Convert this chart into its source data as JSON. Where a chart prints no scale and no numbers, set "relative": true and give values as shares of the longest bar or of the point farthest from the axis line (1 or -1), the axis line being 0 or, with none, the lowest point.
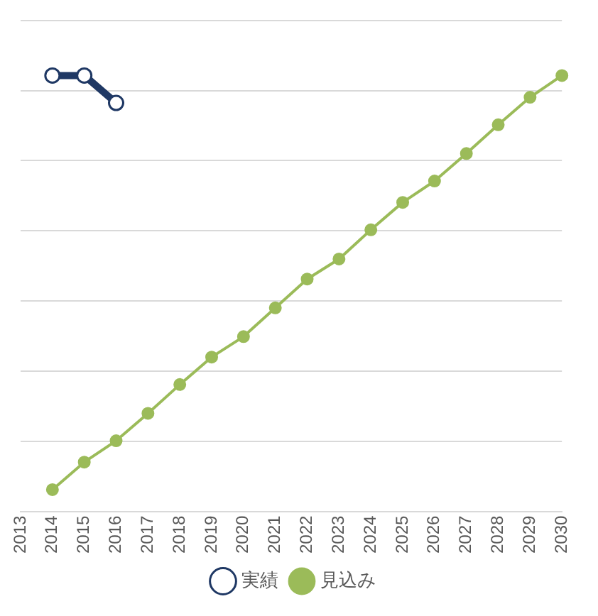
{
  "chart_data": {
    "type": "line",
    "relative": true,
    "categories": [
      "2013",
      "2014",
      "2015",
      "2016",
      "2017",
      "2018",
      "2019",
      "2020",
      "2021",
      "2022",
      "2023",
      "2024",
      "2025",
      "2026",
      "2027",
      "2028",
      "2029",
      "2030"
    ],
    "series": [
      {
        "name": "実績",
        "color": "#1f3864",
        "values": [
          null,
          1,
          1,
          0.937,
          null,
          null,
          null,
          null,
          null,
          null,
          null,
          null,
          null,
          null,
          null,
          null,
          null,
          null
        ]
      },
      {
        "name": "見込み",
        "color": "#9bbb59",
        "values": [
          null,
          0.05,
          0.113,
          0.162,
          0.225,
          0.291,
          0.354,
          0.401,
          0.467,
          0.533,
          0.579,
          0.646,
          0.709,
          0.758,
          0.821,
          0.887,
          0.95,
          1
        ]
      }
    ],
    "grid": "y",
    "legend": "bottom",
    "marker": "circle",
    "line_style": "solid"
  }
}
